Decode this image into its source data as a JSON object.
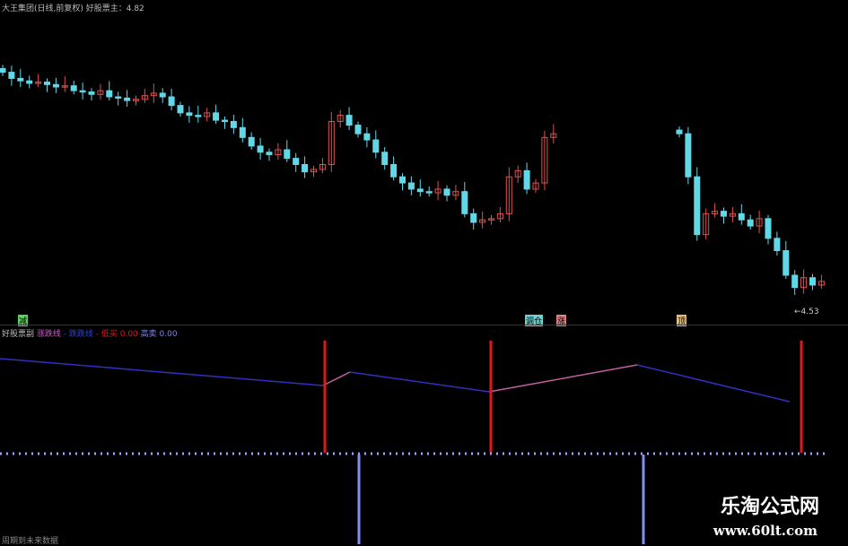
{
  "header": {
    "title": "大王集团(日线,前复权) 好股票主：4.82"
  },
  "sub_header": {
    "name": "好股票副",
    "items": [
      {
        "label": "涨跌线",
        "color": "#c060c0"
      },
      {
        "label": "- 跌跌线",
        "color": "#3040d0"
      },
      {
        "label": "- 低买 0.00",
        "color": "#d02020"
      },
      {
        "label": "高卖 0.00",
        "color": "#8080e0"
      }
    ]
  },
  "markers": [
    {
      "label": "减",
      "color": "#60d060"
    },
    {
      "label": "调仓",
      "color": "#70d0d0"
    },
    {
      "label": "涨",
      "color": "#e08080"
    },
    {
      "label": "顶",
      "color": "#e0c080"
    }
  ],
  "low_label": "4.53",
  "footer_text": "周期到未来数据",
  "watermark": {
    "title": "乐淘公式网",
    "url": "www.60lt.com"
  },
  "colors": {
    "up": "#e05050",
    "down": "#60d8e8",
    "line_up": "#c060a0",
    "line_down": "#3030c0",
    "signal": "#e01818",
    "dotline": "#9aa0ff"
  },
  "chart_data": {
    "type": "candlestick",
    "segment1_closes": [
      6.45,
      6.4,
      6.38,
      6.36,
      6.37,
      6.35,
      6.33,
      6.34,
      6.3,
      6.29,
      6.27,
      6.3,
      6.25,
      6.24,
      6.22,
      6.23,
      6.26,
      6.28,
      6.25,
      6.18,
      6.12,
      6.1,
      6.09,
      6.12,
      6.06,
      6.05,
      6.0,
      5.92,
      5.85,
      5.8,
      5.78,
      5.82,
      5.75,
      5.7,
      5.64,
      5.66,
      5.7,
      6.05,
      6.1,
      6.02,
      5.95,
      5.9,
      5.8,
      5.7,
      5.6,
      5.55,
      5.5,
      5.48,
      5.47,
      5.5,
      5.45,
      5.48,
      5.3,
      5.23,
      5.25,
      5.26,
      5.3,
      5.6,
      5.65,
      5.5,
      5.55,
      5.92,
      5.95
    ],
    "segment2_closes": [
      5.95,
      5.6,
      5.13,
      5.3,
      5.32,
      5.28,
      5.3,
      5.25,
      5.2,
      5.26,
      5.1,
      5.0,
      4.8,
      4.7,
      4.78,
      4.72,
      4.75
    ],
    "ylim": [
      4.45,
      6.6
    ]
  }
}
